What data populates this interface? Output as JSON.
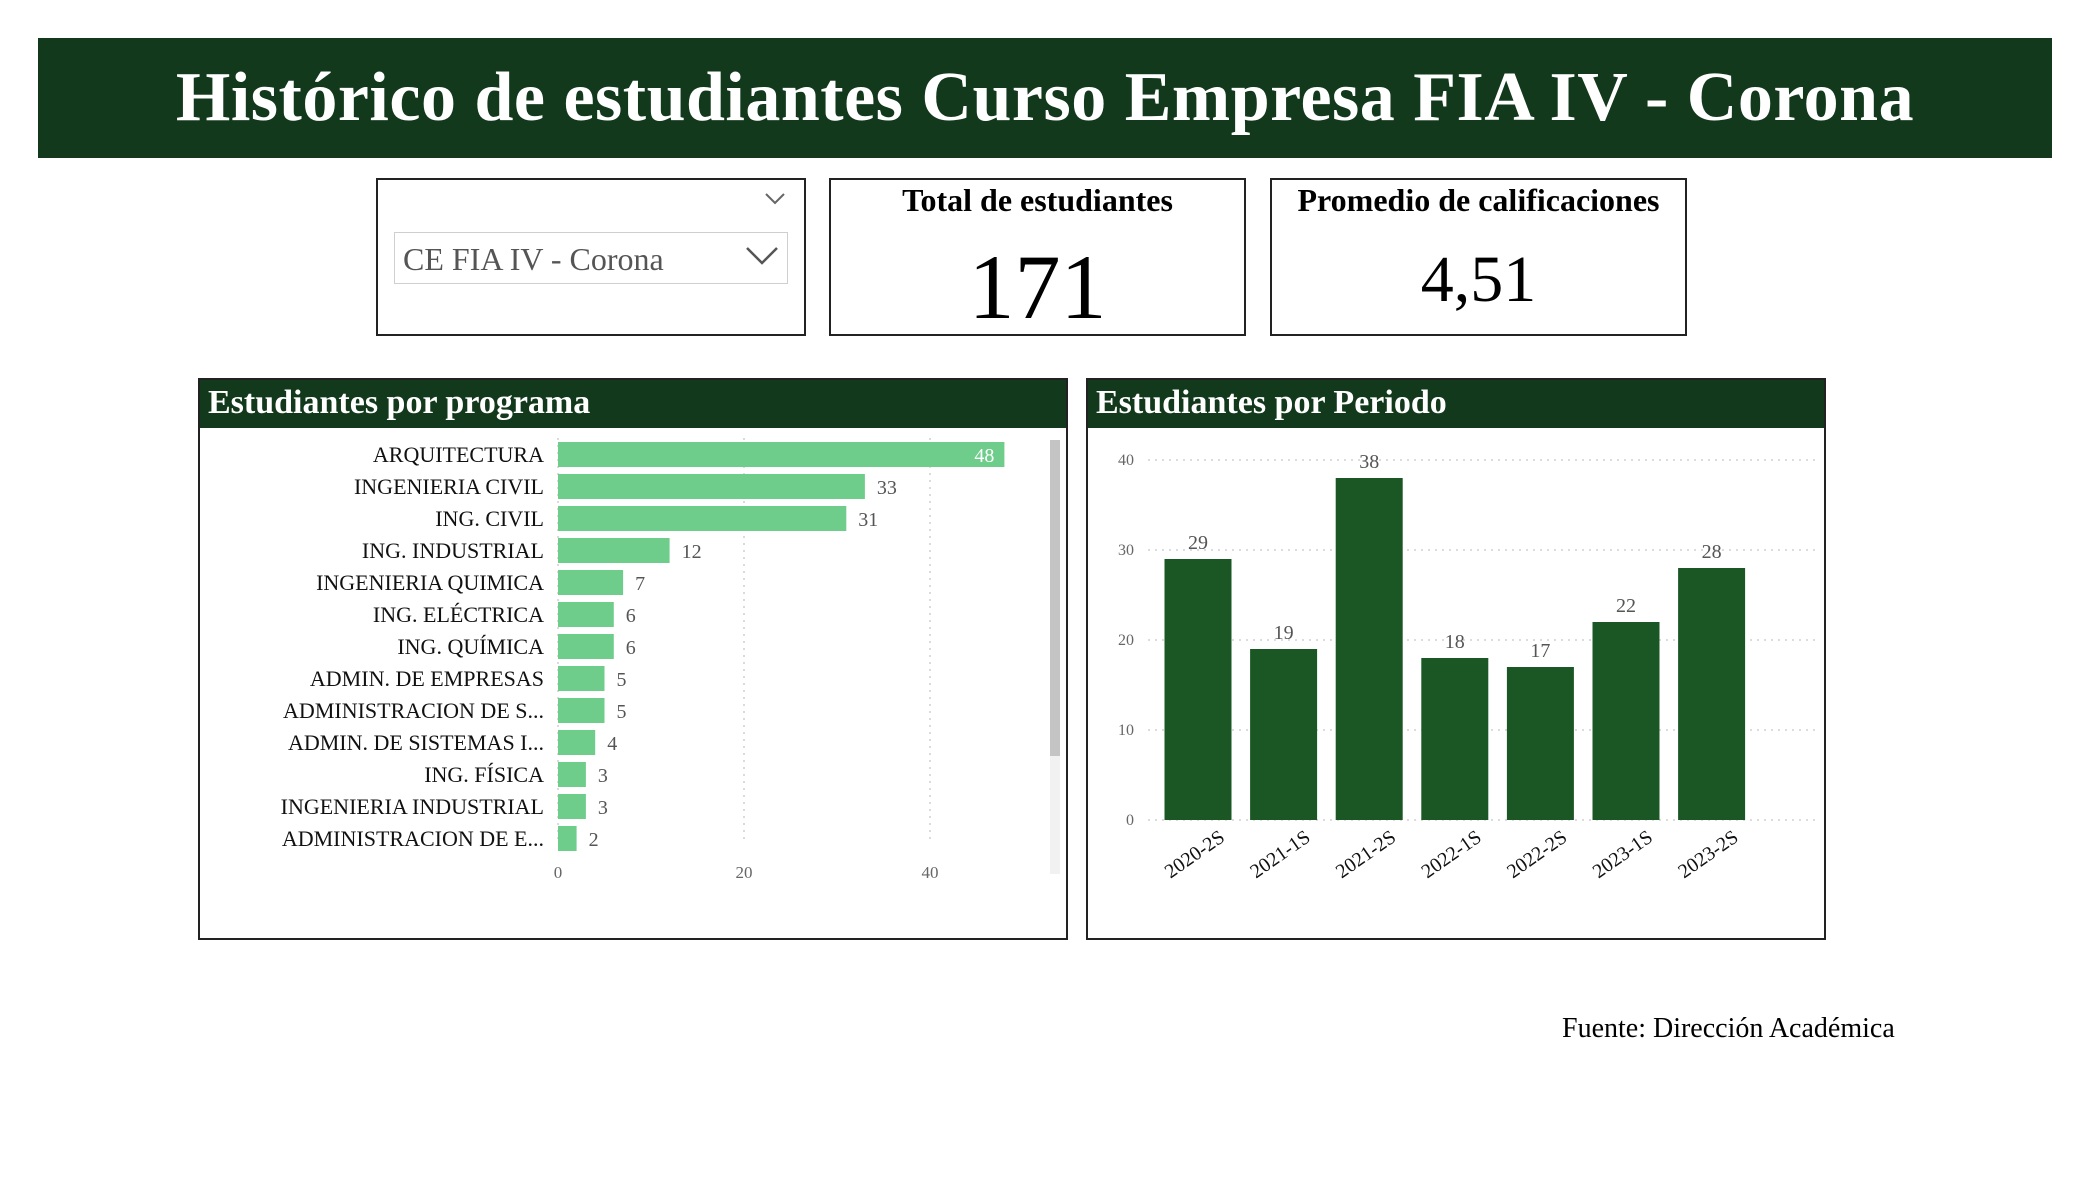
{
  "header": {
    "title": "Histórico de estudiantes Curso Empresa FIA IV - Corona"
  },
  "slicer": {
    "title": "",
    "selected": "CE FIA IV - Corona"
  },
  "kpis": {
    "total_label": "Total de estudiantes",
    "total_value": "171",
    "avg_label": "Promedio de calificaciones",
    "avg_value": "4,51"
  },
  "colors": {
    "header": "#12391b",
    "bar_light": "#6fcd8b",
    "bar_dark": "#1a5725"
  },
  "footer": {
    "source": "Fuente: Dirección Académica"
  },
  "chart_data": [
    {
      "type": "bar",
      "orientation": "horizontal",
      "title": "Estudiantes por programa",
      "categories": [
        "ARQUITECTURA",
        "INGENIERIA CIVIL",
        "ING. CIVIL",
        "ING. INDUSTRIAL",
        "INGENIERIA QUIMICA",
        "ING. ELÉCTRICA",
        "ING. QUÍMICA",
        "ADMIN. DE EMPRESAS",
        "ADMINISTRACION DE S...",
        "ADMIN. DE SISTEMAS I...",
        "ING. FÍSICA",
        "INGENIERIA INDUSTRIAL",
        "ADMINISTRACION DE E..."
      ],
      "values": [
        48,
        33,
        31,
        12,
        7,
        6,
        6,
        5,
        5,
        4,
        3,
        3,
        2
      ],
      "xticks": [
        0,
        20,
        40
      ],
      "xlim": [
        0,
        52
      ],
      "grid": true,
      "data_labels": true
    },
    {
      "type": "bar",
      "orientation": "vertical",
      "title": "Estudiantes por Periodo",
      "categories": [
        "2020-2S",
        "2021-1S",
        "2021-2S",
        "2022-1S",
        "2022-2S",
        "2023-1S",
        "2023-2S"
      ],
      "values": [
        29,
        19,
        38,
        18,
        17,
        22,
        28
      ],
      "yticks": [
        0,
        10,
        20,
        30,
        40
      ],
      "ylim": [
        0,
        40
      ],
      "grid": true,
      "data_labels": true
    }
  ]
}
